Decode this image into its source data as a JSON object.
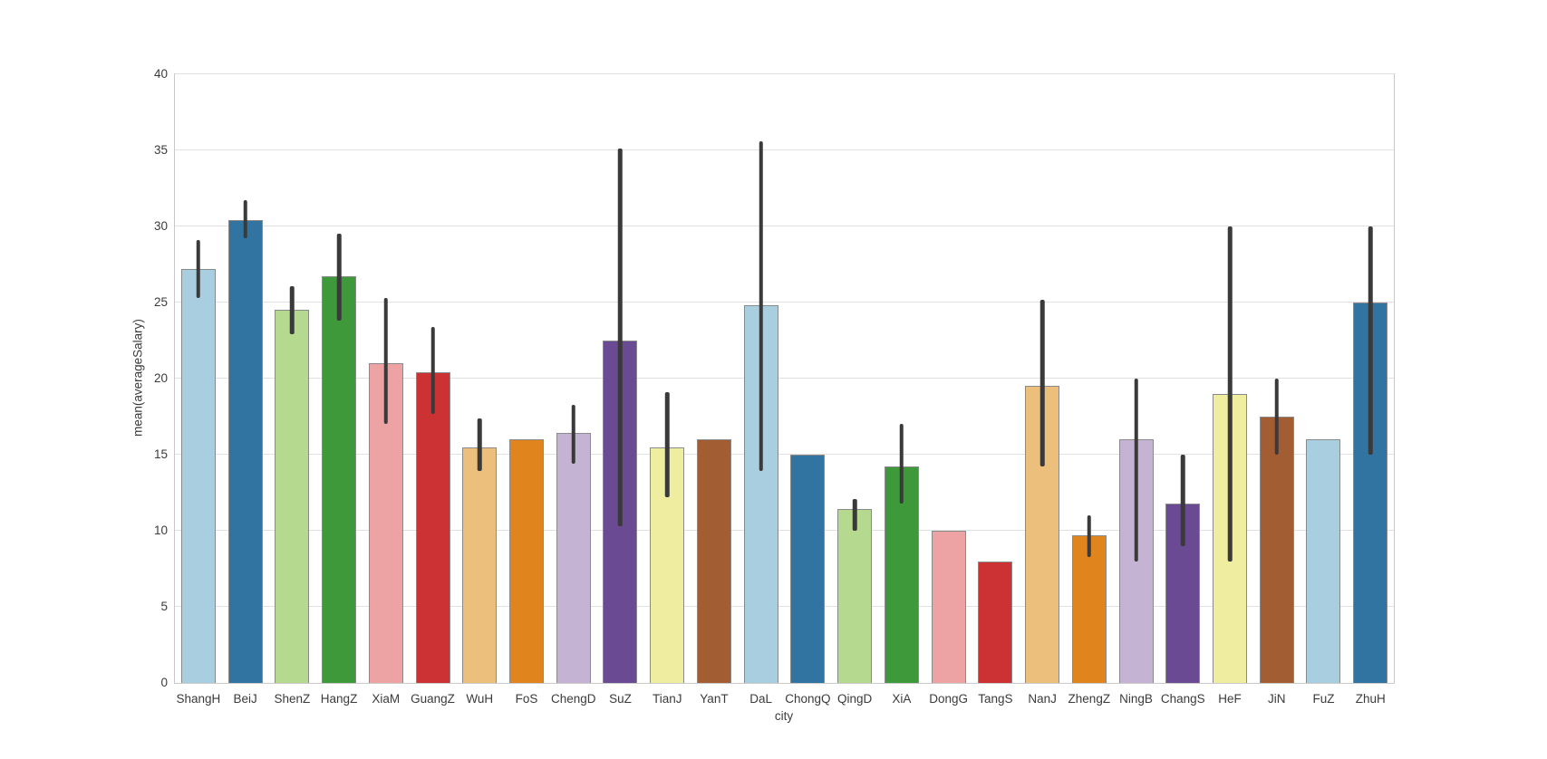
{
  "page": {
    "background_color": "#ffffff"
  },
  "chart_data": {
    "type": "bar",
    "title": "",
    "xlabel": "city",
    "ylabel": "mean(averageSalary)",
    "ylim": [
      0,
      40
    ],
    "yticks": [
      0,
      5,
      10,
      15,
      20,
      25,
      30,
      35,
      40
    ],
    "grid": "horizontal-only",
    "legend_position": "none",
    "categories": [
      "ShangH",
      "BeiJ",
      "ShenZ",
      "HangZ",
      "XiaM",
      "GuangZ",
      "WuH",
      "FoS",
      "ChengD",
      "SuZ",
      "TianJ",
      "YanT",
      "DaL",
      "ChongQ",
      "QingD",
      "XiA",
      "DongG",
      "TangS",
      "NanJ",
      "ZhengZ",
      "NingB",
      "ChangS",
      "HeF",
      "JiN",
      "FuZ",
      "ZhuH"
    ],
    "values": [
      27.2,
      30.4,
      24.5,
      26.7,
      21.0,
      20.4,
      15.5,
      16.0,
      16.4,
      22.5,
      15.5,
      16.0,
      24.8,
      15.0,
      11.4,
      14.2,
      10.0,
      8.0,
      19.5,
      9.7,
      16.0,
      11.8,
      19.0,
      17.5,
      16.0,
      25.0
    ],
    "error_low": [
      25.3,
      29.2,
      22.9,
      23.8,
      17.0,
      17.7,
      13.9,
      null,
      14.4,
      10.3,
      12.2,
      null,
      13.9,
      null,
      10.0,
      11.8,
      null,
      null,
      14.2,
      8.3,
      8.0,
      9.0,
      8.0,
      15.0,
      null,
      15.0
    ],
    "error_high": [
      29.1,
      31.7,
      26.1,
      29.5,
      25.3,
      23.4,
      17.4,
      null,
      18.3,
      35.1,
      19.1,
      null,
      35.6,
      null,
      12.1,
      17.0,
      null,
      null,
      25.2,
      11.0,
      20.0,
      15.0,
      30.0,
      20.0,
      null,
      30.0
    ],
    "palette": [
      "#a8cee0",
      "#3274a1",
      "#b4d98f",
      "#3d9939",
      "#eda3a4",
      "#cc3234",
      "#edbf7c",
      "#e0851d",
      "#c4b3d3",
      "#6a4a93",
      "#efeda0",
      "#a35d32"
    ],
    "error_bar_color": "#3a3a3a",
    "bar_edge_color": "#8a8a8a",
    "gridline_color": "#e1e1e1",
    "axis_border_color": "#c9c9c9",
    "tick_label_color": "#3b3b3b"
  }
}
